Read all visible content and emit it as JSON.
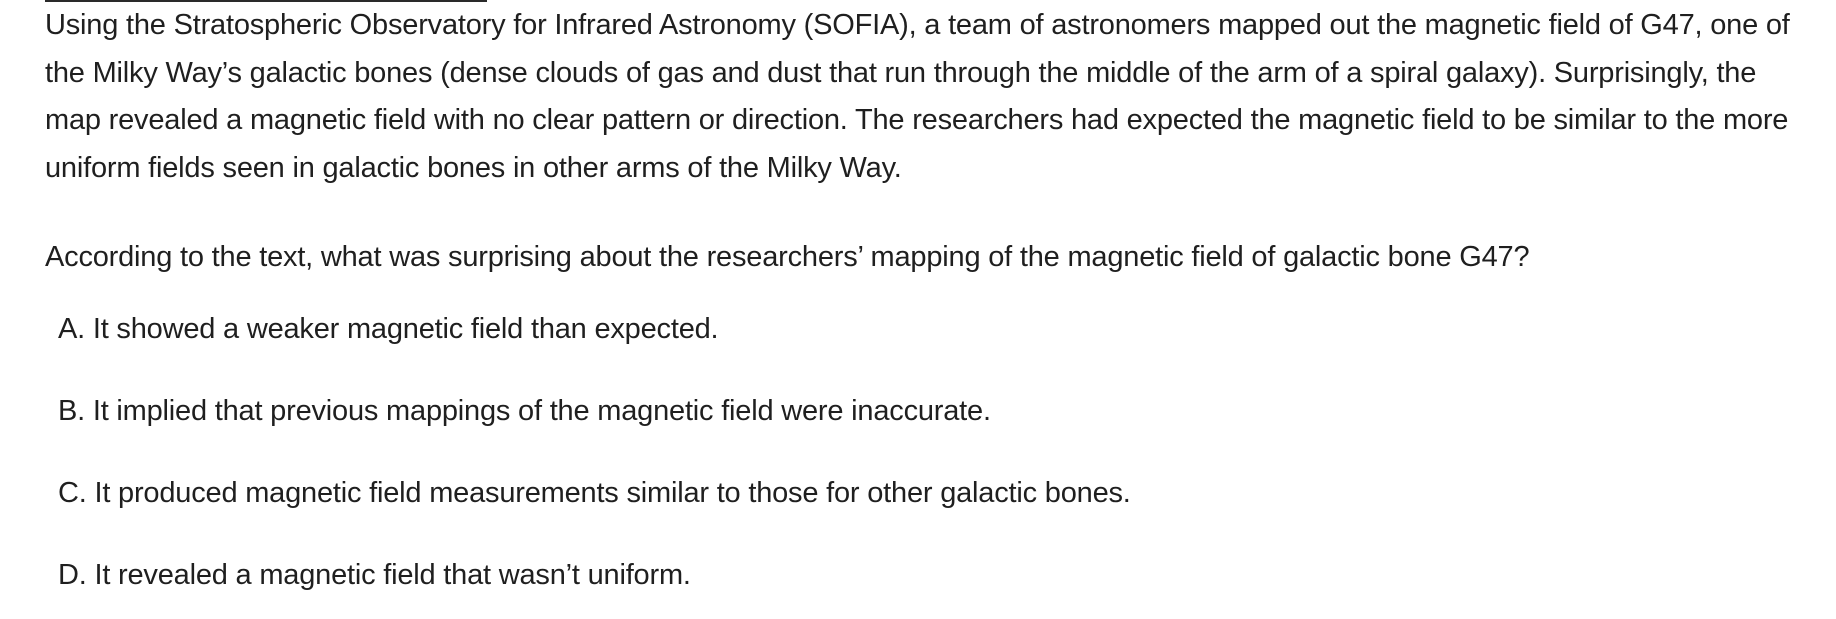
{
  "passage": {
    "text": "Using the Stratospheric Observatory for Infrared Astronomy (SOFIA), a team of astronomers mapped out the magnetic field of G47, one of the Milky Way’s galactic bones (dense clouds of gas and dust that run through the middle of the arm of a spiral galaxy). Surprisingly, the map revealed a magnetic field with no clear pattern or direction. The researchers had expected the magnetic field to be similar to the more uniform fields seen in galactic bones in other arms of the Milky Way."
  },
  "question": {
    "text": "According to the text, what was surprising about the researchers’ mapping of the magnetic field of galactic bone G47?"
  },
  "choices": [
    {
      "letter": "A.",
      "text": "It showed a weaker magnetic field than expected."
    },
    {
      "letter": "B.",
      "text": "It implied that previous mappings of the magnetic field were inaccurate."
    },
    {
      "letter": "C.",
      "text": "It produced magnetic field measurements similar to those for other galactic bones."
    },
    {
      "letter": "D.",
      "text": "It revealed a magnetic field that wasn’t uniform."
    }
  ]
}
